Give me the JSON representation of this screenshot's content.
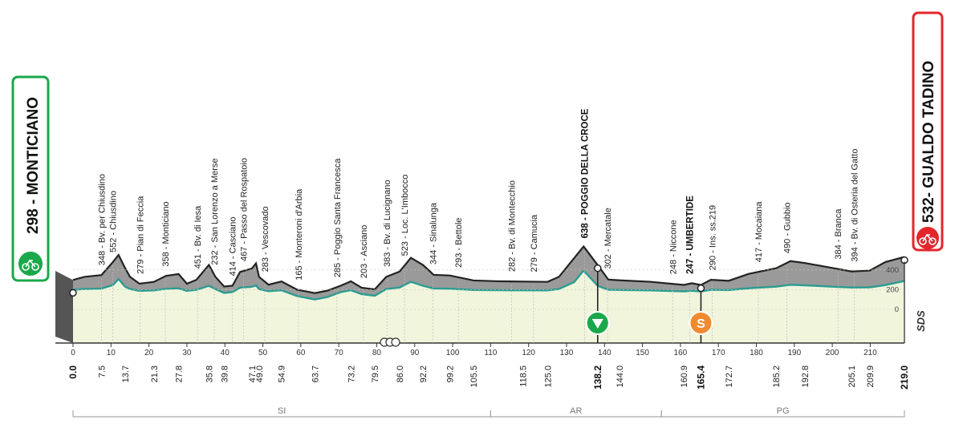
{
  "start": {
    "label": "298 - MONTICIANO",
    "color": "#1aa84a"
  },
  "finish": {
    "label": "532- GUALDO TADINO",
    "color": "#e3262c"
  },
  "brand": {
    "text": "SDS"
  },
  "chart_data": {
    "type": "area",
    "total_km": 219.0,
    "km_ticks": [
      0,
      10,
      20,
      30,
      40,
      50,
      60,
      70,
      80,
      90,
      100,
      110,
      120,
      130,
      140,
      150,
      160,
      170,
      180,
      190,
      200,
      210
    ],
    "km_tick_labels": [
      "0",
      "10",
      "20",
      "30",
      "40",
      "50",
      "60",
      "70",
      "80",
      "90",
      "100",
      "110",
      "120",
      "130",
      "140",
      "150",
      "160",
      "170",
      "180",
      "190",
      "200",
      "210"
    ],
    "alt_ticks": [
      0,
      200,
      400
    ],
    "alt_tick_labels": [
      "0",
      "200",
      "400"
    ],
    "profile": [
      {
        "km": 0,
        "alt": 298
      },
      {
        "km": 3,
        "alt": 330
      },
      {
        "km": 7.5,
        "alt": 348
      },
      {
        "km": 10.5,
        "alt": 480
      },
      {
        "km": 12,
        "alt": 552
      },
      {
        "km": 13.7,
        "alt": 420
      },
      {
        "km": 15,
        "alt": 330
      },
      {
        "km": 17.5,
        "alt": 260
      },
      {
        "km": 21.3,
        "alt": 279
      },
      {
        "km": 24.5,
        "alt": 340
      },
      {
        "km": 27.8,
        "alt": 358
      },
      {
        "km": 30,
        "alt": 260
      },
      {
        "km": 32.5,
        "alt": 300
      },
      {
        "km": 35.8,
        "alt": 451
      },
      {
        "km": 37.5,
        "alt": 330
      },
      {
        "km": 39.8,
        "alt": 232
      },
      {
        "km": 42,
        "alt": 240
      },
      {
        "km": 44,
        "alt": 380
      },
      {
        "km": 47.1,
        "alt": 414
      },
      {
        "km": 48.2,
        "alt": 467
      },
      {
        "km": 49,
        "alt": 330
      },
      {
        "km": 51.5,
        "alt": 250
      },
      {
        "km": 54.9,
        "alt": 283
      },
      {
        "km": 59,
        "alt": 200
      },
      {
        "km": 63.7,
        "alt": 165
      },
      {
        "km": 67,
        "alt": 190
      },
      {
        "km": 70.5,
        "alt": 240
      },
      {
        "km": 73.2,
        "alt": 285
      },
      {
        "km": 76,
        "alt": 220
      },
      {
        "km": 79.5,
        "alt": 203
      },
      {
        "km": 82.5,
        "alt": 330
      },
      {
        "km": 86,
        "alt": 383
      },
      {
        "km": 89,
        "alt": 523
      },
      {
        "km": 92.2,
        "alt": 450
      },
      {
        "km": 95,
        "alt": 350
      },
      {
        "km": 99.2,
        "alt": 344
      },
      {
        "km": 105.5,
        "alt": 293
      },
      {
        "km": 112,
        "alt": 285
      },
      {
        "km": 118.5,
        "alt": 282
      },
      {
        "km": 125,
        "alt": 279
      },
      {
        "km": 128,
        "alt": 330
      },
      {
        "km": 132,
        "alt": 520
      },
      {
        "km": 134.5,
        "alt": 638
      },
      {
        "km": 138.2,
        "alt": 450
      },
      {
        "km": 141,
        "alt": 302
      },
      {
        "km": 144,
        "alt": 295
      },
      {
        "km": 152,
        "alt": 280
      },
      {
        "km": 160.9,
        "alt": 248
      },
      {
        "km": 163,
        "alt": 265
      },
      {
        "km": 165.4,
        "alt": 247
      },
      {
        "km": 168,
        "alt": 300
      },
      {
        "km": 172.7,
        "alt": 290
      },
      {
        "km": 178,
        "alt": 360
      },
      {
        "km": 185.2,
        "alt": 417
      },
      {
        "km": 189,
        "alt": 490
      },
      {
        "km": 192.8,
        "alt": 470
      },
      {
        "km": 200,
        "alt": 420
      },
      {
        "km": 205.1,
        "alt": 384
      },
      {
        "km": 209.9,
        "alt": 394
      },
      {
        "km": 214,
        "alt": 480
      },
      {
        "km": 219,
        "alt": 532
      }
    ],
    "waypoints": [
      {
        "km": 7.5,
        "name": "348 - Bv. per Chiusdino",
        "bold": false
      },
      {
        "km": 10.5,
        "name": "552 - Chiusdino",
        "bold": false
      },
      {
        "km": 17.7,
        "name": "279 - Pian di Feccia",
        "bold": false
      },
      {
        "km": 24.3,
        "name": "358 - Monticiano",
        "bold": false
      },
      {
        "km": 32.8,
        "name": "451 - Bv. di Iesa",
        "bold": false
      },
      {
        "km": 37.2,
        "name": "232 - San Lorenzo a Merse",
        "bold": false
      },
      {
        "km": 42.0,
        "name": "414 - Casciano",
        "bold": false
      },
      {
        "km": 44.9,
        "name": "467 - Passo del Rospatoio",
        "bold": false
      },
      {
        "km": 50.5,
        "name": "283 - Vescovado",
        "bold": false
      },
      {
        "km": 59.4,
        "name": "165 - Monteroni d'Arbia",
        "bold": false
      },
      {
        "km": 69.5,
        "name": "285 - Poggio Santa Francesca",
        "bold": false
      },
      {
        "km": 76.5,
        "name": "203 - Asciano",
        "bold": false
      },
      {
        "km": 82.7,
        "name": "383 - Bv. di Lucignano",
        "bold": false
      },
      {
        "km": 87.3,
        "name": "523 - Loc. L'Imbocco",
        "bold": false
      },
      {
        "km": 94.8,
        "name": "344 - Sinalunga",
        "bold": false
      },
      {
        "km": 101.5,
        "name": "293 - Bettole",
        "bold": false
      },
      {
        "km": 115.5,
        "name": "282 - Bv. di Montecchio",
        "bold": false
      },
      {
        "km": 121.3,
        "name": "279 - Camucia",
        "bold": false
      },
      {
        "km": 134.8,
        "name": "638 - POGGIO DELLA CROCE",
        "bold": true
      },
      {
        "km": 140.8,
        "name": "302 - Mercatale",
        "bold": false
      },
      {
        "km": 158.0,
        "name": "248 - Niccone",
        "bold": false
      },
      {
        "km": 162.5,
        "name": "247 - UMBERTIDE",
        "bold": true
      },
      {
        "km": 168.4,
        "name": "290 - Ins. ss.219",
        "bold": false
      },
      {
        "km": 180.5,
        "name": "417 - Mocaiana",
        "bold": false
      },
      {
        "km": 188.0,
        "name": "490 - Gubbio",
        "bold": false
      },
      {
        "km": 201.5,
        "name": "384 - Branca",
        "bold": false
      },
      {
        "km": 205.8,
        "name": "394 - Bv. di Osteria del Gatto",
        "bold": false
      }
    ],
    "distances": [
      {
        "km": 0,
        "label": "0.0",
        "bold": true
      },
      {
        "km": 7.5,
        "label": "7.5",
        "bold": false
      },
      {
        "km": 13.7,
        "label": "13.7",
        "bold": false
      },
      {
        "km": 21.3,
        "label": "21.3",
        "bold": false
      },
      {
        "km": 27.8,
        "label": "27.8",
        "bold": false
      },
      {
        "km": 35.8,
        "label": "35.8",
        "bold": false
      },
      {
        "km": 39.8,
        "label": "39.8",
        "bold": false
      },
      {
        "km": 47.1,
        "label": "47.1",
        "bold": false
      },
      {
        "km": 49.0,
        "label": "49.0",
        "bold": false
      },
      {
        "km": 54.9,
        "label": "54.9",
        "bold": false
      },
      {
        "km": 63.7,
        "label": "63.7",
        "bold": false
      },
      {
        "km": 73.2,
        "label": "73.2",
        "bold": false
      },
      {
        "km": 79.5,
        "label": "79.5",
        "bold": false
      },
      {
        "km": 86.0,
        "label": "86.0",
        "bold": false
      },
      {
        "km": 92.2,
        "label": "92.2",
        "bold": false
      },
      {
        "km": 99.2,
        "label": "99.2",
        "bold": false
      },
      {
        "km": 105.5,
        "label": "105.5",
        "bold": false
      },
      {
        "km": 118.5,
        "label": "118.5",
        "bold": false
      },
      {
        "km": 125.0,
        "label": "125.0",
        "bold": false
      },
      {
        "km": 138.2,
        "label": "138.2",
        "bold": true
      },
      {
        "km": 144.0,
        "label": "144.0",
        "bold": false
      },
      {
        "km": 160.9,
        "label": "160.9",
        "bold": false
      },
      {
        "km": 165.4,
        "label": "165.4",
        "bold": true
      },
      {
        "km": 172.7,
        "label": "172.7",
        "bold": false
      },
      {
        "km": 185.2,
        "label": "185.2",
        "bold": false
      },
      {
        "km": 192.8,
        "label": "192.8",
        "bold": false
      },
      {
        "km": 205.1,
        "label": "205.1",
        "bold": false
      },
      {
        "km": 209.9,
        "label": "209.9",
        "bold": false
      },
      {
        "km": 219.0,
        "label": "219.0",
        "bold": true
      }
    ],
    "regions": [
      {
        "from_km": 0,
        "to_km": 110,
        "label": "SI"
      },
      {
        "from_km": 110,
        "to_km": 155,
        "label": "AR"
      },
      {
        "from_km": 155,
        "to_km": 219,
        "label": "PG"
      }
    ],
    "markers": [
      {
        "km": 138.2,
        "type": "gpm"
      },
      {
        "km": 165.4,
        "type": "sprint",
        "text": "S"
      },
      {
        "km": 83.5,
        "type": "rail"
      }
    ],
    "colors": {
      "ground": "#f1f5dc",
      "mountain": "#9a9a9a",
      "teal": "#2a9c92",
      "gpm": "#1aa84a",
      "sprint": "#f08a30"
    }
  }
}
